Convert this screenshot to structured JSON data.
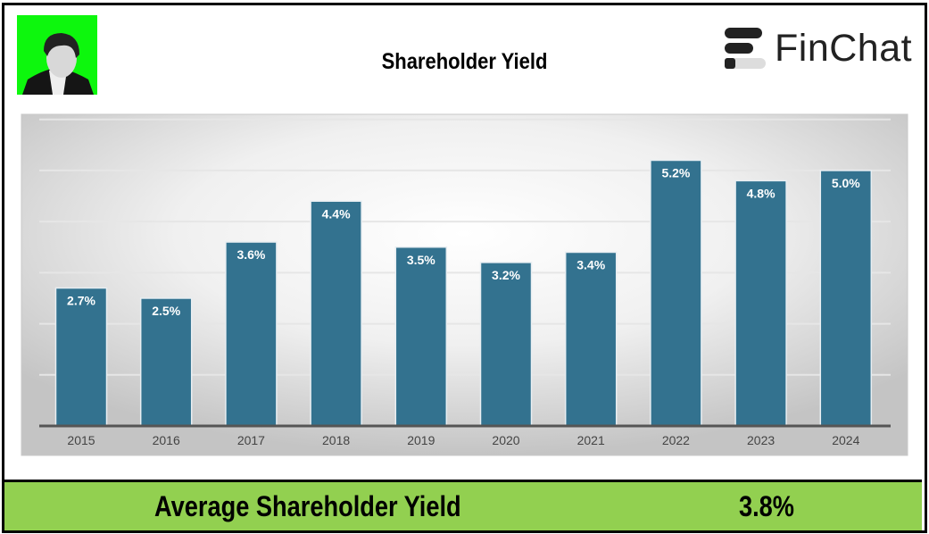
{
  "title": "Shareholder Yield",
  "logo": {
    "text": "FinChat",
    "icon": "finchat-logo-icon"
  },
  "avatar": {
    "icon": "person-photo"
  },
  "chart_data": {
    "type": "bar",
    "title": "Shareholder Yield",
    "categories": [
      "2015",
      "2016",
      "2017",
      "2018",
      "2019",
      "2020",
      "2021",
      "2022",
      "2023",
      "2024"
    ],
    "values": [
      2.7,
      2.5,
      3.6,
      4.4,
      3.5,
      3.2,
      3.4,
      5.2,
      4.8,
      5.0
    ],
    "data_labels": [
      "2.7%",
      "2.5%",
      "3.6%",
      "4.4%",
      "3.5%",
      "3.2%",
      "3.4%",
      "5.2%",
      "4.8%",
      "5.0%"
    ],
    "ylim": [
      0,
      6.1
    ],
    "grid": true,
    "bar_color": "#33728f"
  },
  "footer": {
    "label": "Average Shareholder Yield",
    "value": "3.8%",
    "background": "#92d050"
  }
}
